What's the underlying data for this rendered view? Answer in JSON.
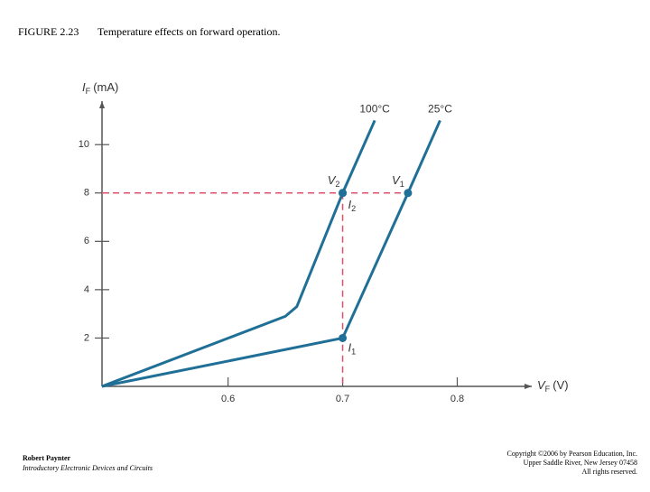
{
  "chart_data": {
    "type": "line",
    "figure_number": "FIGURE 2.23",
    "title": "Temperature effects on forward operation.",
    "x_label": {
      "symbol": "V",
      "sub": "F",
      "unit": "(V)"
    },
    "y_label": {
      "symbol": "I",
      "sub": "F",
      "unit": "(mA)"
    },
    "xlim": [
      0.49,
      0.865
    ],
    "xticks": [
      0.6,
      0.7,
      0.8
    ],
    "ylim": [
      0,
      11.8
    ],
    "yticks": [
      2,
      4,
      6,
      8,
      10
    ],
    "series": [
      {
        "name": "100°C",
        "color": "#1f6f97",
        "x": [
          0.49,
          0.65,
          0.66,
          0.7,
          0.728
        ],
        "values": [
          0,
          2.9,
          3.3,
          8,
          11
        ]
      },
      {
        "name": "25°C",
        "color": "#1f6f97",
        "x": [
          0.49,
          0.7,
          0.757,
          0.785
        ],
        "values": [
          0,
          2,
          8,
          11
        ]
      }
    ],
    "guides": {
      "color": "#e0506a",
      "x": [
        0.7
      ],
      "y": [
        8
      ]
    },
    "points": [
      {
        "x": 0.7,
        "y": 8,
        "symbol": "V",
        "sub": "2"
      },
      {
        "x": 0.757,
        "y": 8,
        "symbol": "V",
        "sub": "1"
      },
      {
        "x": 0.7,
        "y": 8,
        "symbol": "I",
        "sub": "2"
      },
      {
        "x": 0.7,
        "y": 2,
        "symbol": "I",
        "sub": "1"
      }
    ]
  },
  "footer": {
    "author": "Robert Paynter",
    "book": "Introductory Electronic Devices and Circuits",
    "copyright": [
      "Copyright ©2006 by Pearson Education, Inc.",
      "Upper Saddle River, New Jersey 07458",
      "All rights reserved."
    ]
  }
}
